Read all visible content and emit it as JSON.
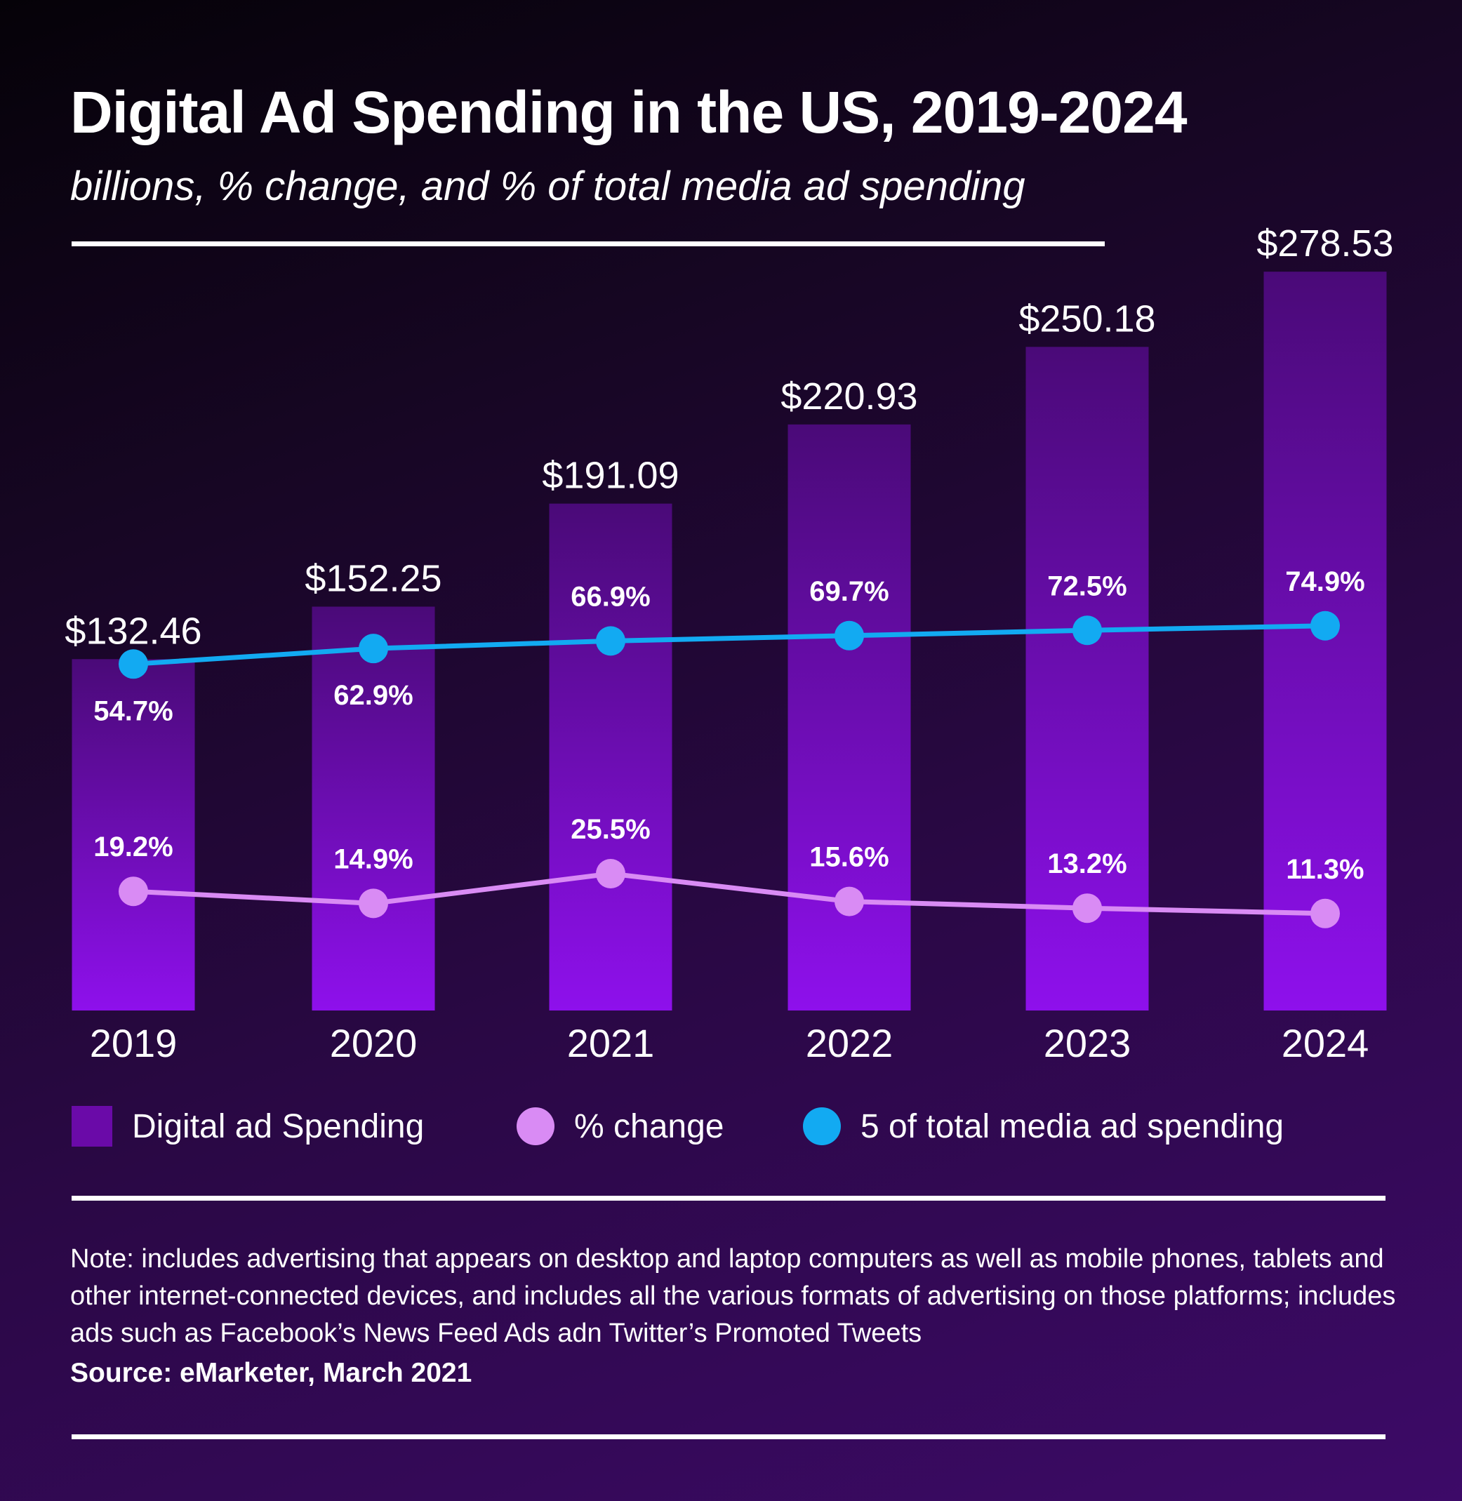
{
  "header": {
    "title": "Digital Ad Spending in the US, 2019-2024",
    "subtitle": "billions, % change, and % of total media ad spending"
  },
  "chart_data": {
    "type": "bar",
    "categories": [
      "2019",
      "2020",
      "2021",
      "2022",
      "2023",
      "2024"
    ],
    "series": [
      {
        "name": "Digital ad Spending",
        "type": "bar",
        "values": [
          132.46,
          152.25,
          191.09,
          220.93,
          250.18,
          278.53
        ],
        "labels": [
          "$132.46",
          "$152.25",
          "$191.09",
          "$220.93",
          "$250.18",
          "$278.53"
        ],
        "color": "#8a12e0"
      },
      {
        "name": "% change",
        "type": "line",
        "values": [
          19.2,
          14.9,
          25.5,
          15.6,
          13.2,
          11.3
        ],
        "labels": [
          "19.2%",
          "14.9%",
          "25.5%",
          "15.6%",
          "13.2%",
          "11.3%"
        ],
        "color": "#d98bf4"
      },
      {
        "name": "5 of total media ad spending",
        "type": "line",
        "values": [
          54.7,
          62.9,
          66.9,
          69.7,
          72.5,
          74.9
        ],
        "labels": [
          "54.7%",
          "62.9%",
          "66.9%",
          "69.7%",
          "72.5%",
          "74.9%"
        ],
        "color": "#12aaf2"
      }
    ],
    "grid": false,
    "legend_position": "bottom"
  },
  "legend": {
    "items": [
      {
        "label": "Digital ad Spending",
        "color": "#6a0aa8"
      },
      {
        "label": "% change",
        "color": "#d98bf4"
      },
      {
        "label": "5 of total media ad spending",
        "color": "#12aaf2"
      }
    ]
  },
  "footer": {
    "note": "Note: includes advertising that appears on desktop and laptop computers as well as mobile phones, tablets and other internet-connected devices, and includes all the various formats of advertising on those platforms; includes ads such as Facebook’s News Feed Ads adn Twitter’s Promoted Tweets",
    "source": "Source: eMarketer, March 2021"
  }
}
